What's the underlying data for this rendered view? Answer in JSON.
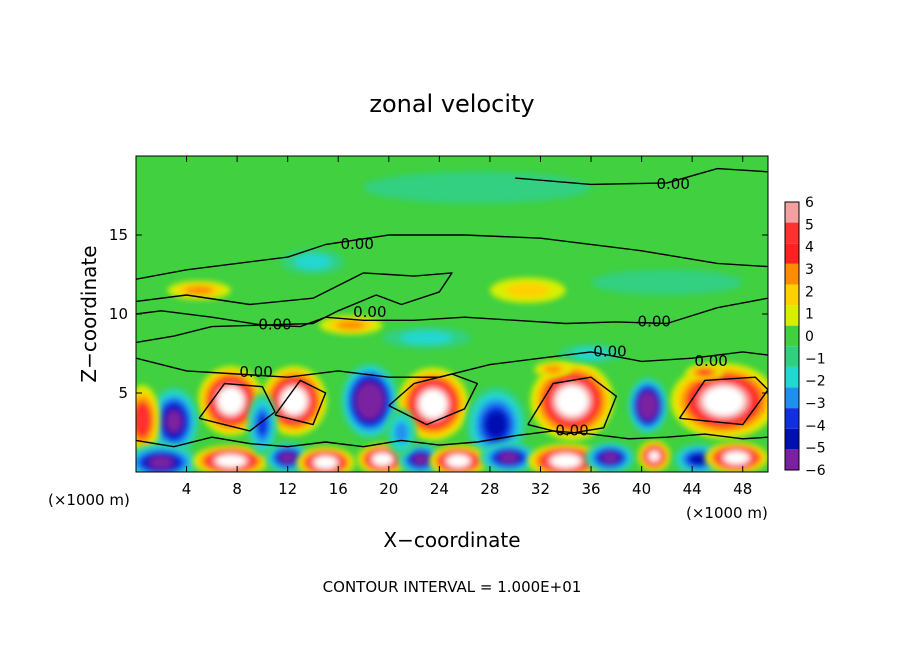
{
  "chart_data": {
    "type": "heatmap",
    "title": "zonal velocity",
    "xlabel": "X−coordinate",
    "ylabel": "Z−coordinate",
    "x_unit_left": "(×1000 m)",
    "x_unit_right": "(×1000 m)",
    "footer": "CONTOUR INTERVAL = 1.000E+01",
    "xlim": [
      0,
      50
    ],
    "ylim": [
      0,
      20
    ],
    "x_ticks": [
      4,
      8,
      12,
      16,
      20,
      24,
      28,
      32,
      36,
      40,
      44,
      48
    ],
    "y_ticks": [
      5,
      10,
      15
    ],
    "colorbar": {
      "min": -6,
      "max": 6,
      "ticks": [
        6,
        5,
        4,
        3,
        2,
        1,
        0,
        -1,
        -2,
        -3,
        -4,
        -5,
        -6
      ],
      "colors": [
        "#f4a0a0",
        "#ff3030",
        "#ff2020",
        "#ff8c00",
        "#ffd000",
        "#d8f000",
        "#40d040",
        "#30d080",
        "#20d8d0",
        "#2090f0",
        "#1030e0",
        "#0010b0",
        "#7a20a0"
      ]
    },
    "background_value": 0.3,
    "anomalies": [
      {
        "x": 7.5,
        "z": 4.5,
        "rx": 2.6,
        "rz": 2.2,
        "value": 10
      },
      {
        "x": 3.0,
        "z": 3.2,
        "rx": 2.0,
        "rz": 2.2,
        "value": -6
      },
      {
        "x": 0.5,
        "z": 3.3,
        "rx": 1.4,
        "rz": 2.2,
        "value": 5
      },
      {
        "x": 12.5,
        "z": 4.5,
        "rx": 2.6,
        "rz": 2.2,
        "value": 10
      },
      {
        "x": 18.5,
        "z": 4.5,
        "rx": 2.3,
        "rz": 2.4,
        "value": -8
      },
      {
        "x": 23.5,
        "z": 4.3,
        "rx": 2.8,
        "rz": 2.3,
        "value": 10
      },
      {
        "x": 28.5,
        "z": 3.0,
        "rx": 2.4,
        "rz": 2.4,
        "value": -5
      },
      {
        "x": 34.5,
        "z": 4.5,
        "rx": 3.3,
        "rz": 2.5,
        "value": 12
      },
      {
        "x": 40.5,
        "z": 4.2,
        "rx": 1.6,
        "rz": 1.8,
        "value": -8
      },
      {
        "x": 46.5,
        "z": 4.5,
        "rx": 4.2,
        "rz": 2.4,
        "value": 12
      },
      {
        "x": 2.0,
        "z": 0.6,
        "rx": 3.0,
        "rz": 1.2,
        "value": -6
      },
      {
        "x": 7.5,
        "z": 0.7,
        "rx": 3.0,
        "rz": 1.0,
        "value": 10
      },
      {
        "x": 12.0,
        "z": 0.9,
        "rx": 1.8,
        "rz": 1.0,
        "value": -6
      },
      {
        "x": 15.0,
        "z": 0.6,
        "rx": 2.3,
        "rz": 1.0,
        "value": 10
      },
      {
        "x": 19.5,
        "z": 0.8,
        "rx": 2.0,
        "rz": 1.0,
        "value": 10
      },
      {
        "x": 22.5,
        "z": 0.8,
        "rx": 1.8,
        "rz": 1.0,
        "value": -6
      },
      {
        "x": 25.5,
        "z": 0.7,
        "rx": 2.3,
        "rz": 1.0,
        "value": 10
      },
      {
        "x": 29.5,
        "z": 0.9,
        "rx": 2.3,
        "rz": 1.0,
        "value": -6
      },
      {
        "x": 34.0,
        "z": 0.7,
        "rx": 3.0,
        "rz": 1.1,
        "value": 10
      },
      {
        "x": 37.5,
        "z": 0.9,
        "rx": 2.0,
        "rz": 1.0,
        "value": -6
      },
      {
        "x": 41.0,
        "z": 1.0,
        "rx": 1.3,
        "rz": 1.0,
        "value": 7
      },
      {
        "x": 44.5,
        "z": 0.8,
        "rx": 2.0,
        "rz": 1.0,
        "value": -5
      },
      {
        "x": 47.5,
        "z": 0.9,
        "rx": 2.5,
        "rz": 1.0,
        "value": 10
      },
      {
        "x": 10.0,
        "z": 3.0,
        "rx": 1.2,
        "rz": 2.0,
        "value": -4
      },
      {
        "x": 21.0,
        "z": 2.5,
        "rx": 1.2,
        "rz": 1.5,
        "value": -3
      },
      {
        "x": 5.0,
        "z": 11.5,
        "rx": 2.5,
        "rz": 0.6,
        "value": 3
      },
      {
        "x": 17.0,
        "z": 9.3,
        "rx": 2.5,
        "rz": 0.6,
        "value": 3
      },
      {
        "x": 31.0,
        "z": 11.5,
        "rx": 3.0,
        "rz": 0.8,
        "value": 2
      },
      {
        "x": 14.0,
        "z": 13.3,
        "rx": 2.5,
        "rz": 0.8,
        "value": -2
      },
      {
        "x": 23.0,
        "z": 8.5,
        "rx": 3.5,
        "rz": 0.7,
        "value": -2
      },
      {
        "x": 36.0,
        "z": 7.5,
        "rx": 2.5,
        "rz": 0.6,
        "value": -2
      },
      {
        "x": 33.0,
        "z": 6.5,
        "rx": 1.5,
        "rz": 0.5,
        "value": 3
      },
      {
        "x": 45.0,
        "z": 6.3,
        "rx": 1.5,
        "rz": 0.5,
        "value": 4
      },
      {
        "x": 27.0,
        "z": 18.0,
        "rx": 9.0,
        "rz": 1.0,
        "value": -1
      },
      {
        "x": 42.0,
        "z": 12.0,
        "rx": 6.0,
        "rz": 0.8,
        "value": -1
      }
    ],
    "contour_labels": [
      {
        "x": 42.5,
        "z": 18.2,
        "text": "0.00"
      },
      {
        "x": 17.5,
        "z": 14.4,
        "text": "0.00"
      },
      {
        "x": 18.5,
        "z": 10.1,
        "text": "0.00"
      },
      {
        "x": 11.0,
        "z": 9.3,
        "text": "0.00"
      },
      {
        "x": 41.0,
        "z": 9.5,
        "text": "0.00"
      },
      {
        "x": 37.5,
        "z": 7.6,
        "text": "0.00"
      },
      {
        "x": 45.5,
        "z": 7.0,
        "text": "0.00"
      },
      {
        "x": 9.5,
        "z": 6.3,
        "text": "0.00"
      },
      {
        "x": 34.5,
        "z": 2.6,
        "text": "0.00"
      }
    ]
  }
}
